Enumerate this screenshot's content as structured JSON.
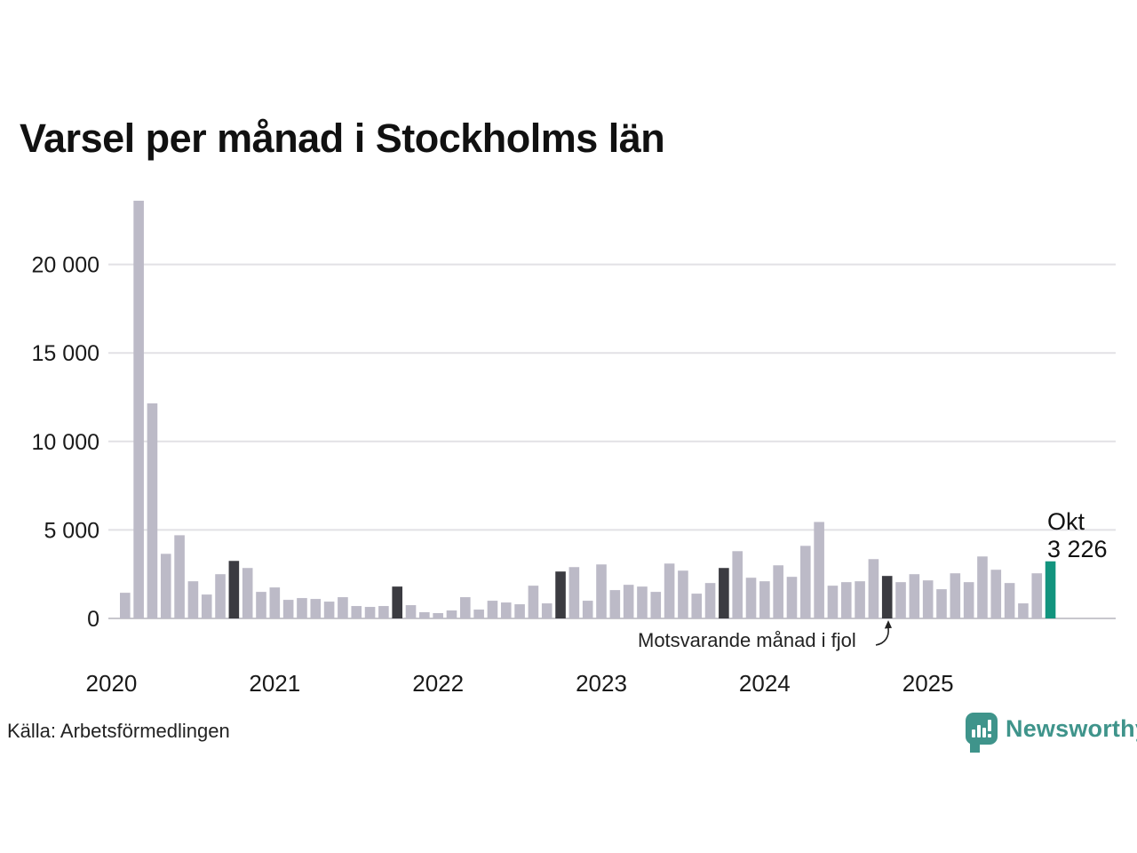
{
  "header": {
    "title": "Varsel per månad i Stockholms län"
  },
  "annotation": {
    "label": "Motsvarande månad i fjol"
  },
  "current": {
    "month": "Okt",
    "value": "3 226"
  },
  "footer": {
    "source": "Källa: Arbetsförmedlingen",
    "brand": "Newsworthy"
  },
  "colors": {
    "bar": "#bcbac7",
    "bar_compare": "#3b3b41",
    "bar_current": "#12947e",
    "grid": "#e2e1e5",
    "baseline": "#c8c7cd",
    "text": "#1a1a1a",
    "brand_teal": "#3f948b"
  },
  "chart_data": {
    "type": "bar",
    "title": "Varsel per månad i Stockholms län",
    "xlabel": "",
    "ylabel": "",
    "ylim": [
      0,
      24000
    ],
    "grid": "horizontal",
    "legend": "none",
    "categories": [
      "2020-02",
      "2020-03",
      "2020-04",
      "2020-05",
      "2020-06",
      "2020-07",
      "2020-08",
      "2020-09",
      "2020-10",
      "2020-11",
      "2020-12",
      "2021-01",
      "2021-02",
      "2021-03",
      "2021-04",
      "2021-05",
      "2021-06",
      "2021-07",
      "2021-08",
      "2021-09",
      "2021-10",
      "2021-11",
      "2021-12",
      "2022-01",
      "2022-02",
      "2022-03",
      "2022-04",
      "2022-05",
      "2022-06",
      "2022-07",
      "2022-08",
      "2022-09",
      "2022-10",
      "2022-11",
      "2022-12",
      "2023-01",
      "2023-02",
      "2023-03",
      "2023-04",
      "2023-05",
      "2023-06",
      "2023-07",
      "2023-08",
      "2023-09",
      "2023-10",
      "2023-11",
      "2023-12",
      "2024-01",
      "2024-02",
      "2024-03",
      "2024-04",
      "2024-05",
      "2024-06",
      "2024-07",
      "2024-08",
      "2024-09",
      "2024-10",
      "2024-11",
      "2024-12",
      "2025-01",
      "2025-02",
      "2025-03",
      "2025-04",
      "2025-05",
      "2025-06",
      "2025-07",
      "2025-08",
      "2025-09",
      "2025-10"
    ],
    "values": [
      1450,
      23600,
      12150,
      3650,
      4700,
      2100,
      1350,
      2500,
      3250,
      2850,
      1500,
      1750,
      1050,
      1150,
      1100,
      950,
      1200,
      700,
      650,
      700,
      1800,
      750,
      350,
      300,
      450,
      1200,
      500,
      1000,
      900,
      800,
      1850,
      850,
      2650,
      2900,
      1000,
      3050,
      1600,
      1900,
      1800,
      1500,
      3100,
      2700,
      1400,
      2000,
      2850,
      3800,
      2300,
      2100,
      3000,
      2350,
      4100,
      5450,
      1850,
      2050,
      2100,
      3350,
      2400,
      2050,
      2500,
      2150,
      1650,
      2550,
      2050,
      3500,
      2750,
      2000,
      850,
      2550,
      3226
    ],
    "compare_indices": [
      8,
      20,
      32,
      44,
      56
    ],
    "current_index": 68,
    "y_ticks": [
      {
        "value": 0,
        "label": "0"
      },
      {
        "value": 5000,
        "label": "5 000"
      },
      {
        "value": 10000,
        "label": "10 000"
      },
      {
        "value": 15000,
        "label": "15 000"
      },
      {
        "value": 20000,
        "label": "20 000"
      }
    ],
    "x_year_ticks": [
      {
        "label": "2020",
        "bar_index": -1
      },
      {
        "label": "2021",
        "bar_index": 11
      },
      {
        "label": "2022",
        "bar_index": 23
      },
      {
        "label": "2023",
        "bar_index": 35
      },
      {
        "label": "2024",
        "bar_index": 47
      },
      {
        "label": "2025",
        "bar_index": 59
      }
    ]
  }
}
